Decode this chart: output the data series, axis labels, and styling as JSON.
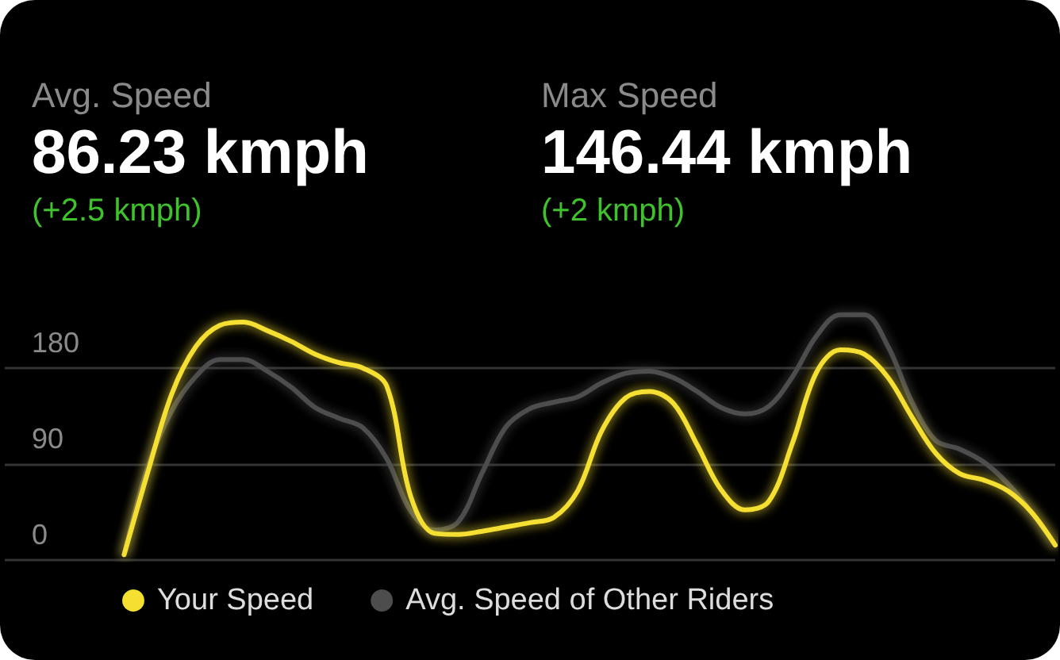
{
  "chart_data": {
    "type": "line",
    "annotations": [
      "Avg. Speed",
      "86.23 kmph",
      "(+2.5 kmph)",
      "Max Speed",
      "146.44 kmph",
      "(+2 kmph)"
    ],
    "categories": [
      null,
      null,
      null,
      null,
      null,
      null,
      null,
      null,
      null,
      null,
      null,
      null,
      null,
      null,
      null,
      null,
      null,
      null,
      null,
      null,
      null,
      null,
      null,
      null,
      null,
      null,
      null,
      null,
      null,
      null,
      null,
      null,
      null,
      null,
      null,
      null,
      null,
      null,
      null,
      null,
      null,
      null,
      null,
      null,
      null
    ],
    "series": [
      {
        "name": "Your Speed",
        "color": "#f5df30",
        "values": [
          null,
          null,
          null,
          null,
          null,
          5,
          83,
          156,
          200,
          220,
          223,
          215,
          205,
          193,
          185,
          180,
          163,
          60,
          25,
          24,
          27,
          31,
          35,
          40,
          65,
          121,
          152,
          158,
          147,
          108,
          66,
          47,
          55,
          110,
          176,
          197,
          193,
          171,
          134,
          100,
          81,
          75,
          65,
          45,
          14
        ]
      },
      {
        "name": "Avg. Speed of Other Riders",
        "color": "#4d4d4d",
        "values": [
          null,
          null,
          null,
          null,
          null,
          5,
          88,
          140,
          172,
          188,
          188,
          177,
          162,
          143,
          133,
          124,
          95,
          46,
          28,
          36,
          82,
          125,
          142,
          148,
          153,
          166,
          175,
          177,
          171,
          158,
          143,
          137,
          144,
          172,
          210,
          230,
          230,
          200,
          148,
          112,
          104,
          92,
          72,
          45,
          14
        ]
      }
    ],
    "ylim": [
      0,
      525
    ],
    "yticks": [
      0,
      90,
      180
    ],
    "grid": "y",
    "legend": "bottom",
    "marker": "none",
    "line_style": "solid"
  }
}
